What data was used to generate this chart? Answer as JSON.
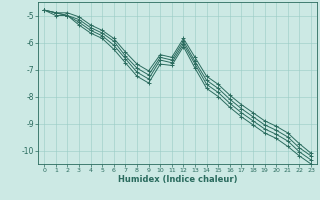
{
  "xlabel": "Humidex (Indice chaleur)",
  "bg_color": "#cce9e4",
  "line_color": "#2a6b5e",
  "grid_color": "#99ccc4",
  "xlim": [
    -0.5,
    23.5
  ],
  "ylim": [
    -10.5,
    -4.5
  ],
  "xticks": [
    0,
    1,
    2,
    3,
    4,
    5,
    6,
    7,
    8,
    9,
    10,
    11,
    12,
    13,
    14,
    15,
    16,
    17,
    18,
    19,
    20,
    21,
    22,
    23
  ],
  "yticks": [
    -10,
    -9,
    -8,
    -7,
    -6,
    -5
  ],
  "series": [
    [
      -4.8,
      -4.9,
      -4.9,
      -5.05,
      -5.35,
      -5.55,
      -5.85,
      -6.35,
      -6.8,
      -7.05,
      -6.45,
      -6.55,
      -5.85,
      -6.55,
      -7.25,
      -7.55,
      -7.95,
      -8.3,
      -8.6,
      -8.9,
      -9.1,
      -9.35,
      -9.75,
      -10.1
    ],
    [
      -4.8,
      -4.9,
      -5.0,
      -5.15,
      -5.45,
      -5.65,
      -5.95,
      -6.5,
      -6.95,
      -7.2,
      -6.55,
      -6.65,
      -5.95,
      -6.7,
      -7.4,
      -7.7,
      -8.1,
      -8.45,
      -8.75,
      -9.05,
      -9.25,
      -9.5,
      -9.9,
      -10.2
    ],
    [
      -4.8,
      -4.9,
      -5.0,
      -5.25,
      -5.55,
      -5.75,
      -6.1,
      -6.6,
      -7.1,
      -7.35,
      -6.65,
      -6.75,
      -6.05,
      -6.8,
      -7.55,
      -7.85,
      -8.25,
      -8.6,
      -8.9,
      -9.2,
      -9.4,
      -9.65,
      -10.05,
      -10.35
    ],
    [
      -4.8,
      -5.0,
      -5.0,
      -5.35,
      -5.65,
      -5.85,
      -6.25,
      -6.75,
      -7.25,
      -7.5,
      -6.8,
      -6.85,
      -6.15,
      -6.95,
      -7.7,
      -8.0,
      -8.4,
      -8.75,
      -9.05,
      -9.35,
      -9.55,
      -9.85,
      -10.2,
      -10.5
    ]
  ]
}
